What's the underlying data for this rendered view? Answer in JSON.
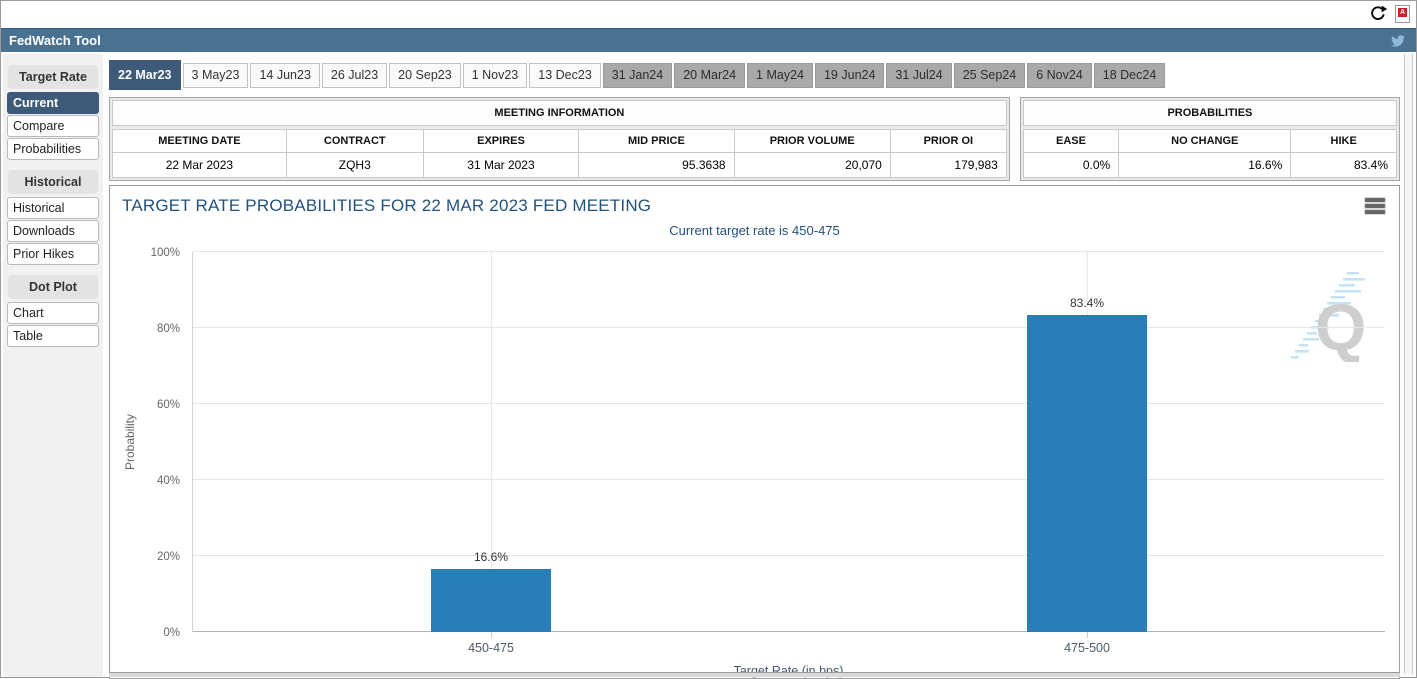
{
  "window": {
    "refresh_icon": "refresh-icon",
    "pdf_icon_label": "A"
  },
  "header": {
    "title": "FedWatch Tool",
    "twitter_icon": "twitter-icon"
  },
  "tabs": [
    {
      "label": "22 Mar23",
      "active": true,
      "group": "2023"
    },
    {
      "label": "3 May23",
      "active": false,
      "group": "2023"
    },
    {
      "label": "14 Jun23",
      "active": false,
      "group": "2023"
    },
    {
      "label": "26 Jul23",
      "active": false,
      "group": "2023"
    },
    {
      "label": "20 Sep23",
      "active": false,
      "group": "2023"
    },
    {
      "label": "1 Nov23",
      "active": false,
      "group": "2023"
    },
    {
      "label": "13 Dec23",
      "active": false,
      "group": "2023"
    },
    {
      "label": "31 Jan24",
      "active": false,
      "group": "2024"
    },
    {
      "label": "20 Mar24",
      "active": false,
      "group": "2024"
    },
    {
      "label": "1 May24",
      "active": false,
      "group": "2024"
    },
    {
      "label": "19 Jun24",
      "active": false,
      "group": "2024"
    },
    {
      "label": "31 Jul24",
      "active": false,
      "group": "2024"
    },
    {
      "label": "25 Sep24",
      "active": false,
      "group": "2024"
    },
    {
      "label": "6 Nov24",
      "active": false,
      "group": "2024"
    },
    {
      "label": "18 Dec24",
      "active": false,
      "group": "2024"
    }
  ],
  "sidebar": {
    "sections": [
      {
        "header": "Target Rate",
        "items": [
          {
            "label": "Current",
            "selected": true
          },
          {
            "label": "Compare",
            "selected": false
          },
          {
            "label": "Probabilities",
            "selected": false
          }
        ]
      },
      {
        "header": "Historical",
        "items": [
          {
            "label": "Historical",
            "selected": false
          },
          {
            "label": "Downloads",
            "selected": false
          },
          {
            "label": "Prior Hikes",
            "selected": false
          }
        ]
      },
      {
        "header": "Dot Plot",
        "items": [
          {
            "label": "Chart",
            "selected": false
          },
          {
            "label": "Table",
            "selected": false
          }
        ]
      }
    ]
  },
  "meeting_information": {
    "title": "MEETING INFORMATION",
    "columns": [
      "MEETING DATE",
      "CONTRACT",
      "EXPIRES",
      "MID PRICE",
      "PRIOR VOLUME",
      "PRIOR OI"
    ],
    "values": [
      "22 Mar 2023",
      "ZQH3",
      "31 Mar 2023",
      "95.3638",
      "20,070",
      "179,983"
    ]
  },
  "probabilities": {
    "title": "PROBABILITIES",
    "columns": [
      "EASE",
      "NO CHANGE",
      "HIKE"
    ],
    "values": [
      "0.0%",
      "16.6%",
      "83.4%"
    ]
  },
  "chart_data": {
    "type": "bar",
    "title": "TARGET RATE PROBABILITIES FOR 22 MAR 2023 FED MEETING",
    "subtitle": "Current target rate is 450-475",
    "categories": [
      "450-475",
      "475-500"
    ],
    "values": [
      16.6,
      83.4
    ],
    "value_labels": [
      "16.6%",
      "83.4%"
    ],
    "xlabel": "Target Rate (in bps)",
    "ylabel": "Probability",
    "ylim": [
      0,
      100
    ],
    "ytick_step": 20,
    "ytick_suffix": "%",
    "grid": true,
    "legend": "none",
    "bar_color": "#2a7eb8",
    "watermark_letter": "Q"
  },
  "colors": {
    "header_bar": "#4a7190",
    "active_selection": "#3d5a78",
    "bar": "#2a7eb8",
    "chart_title_text": "#23527c",
    "tab_2024_bg": "#a9a9a9"
  }
}
